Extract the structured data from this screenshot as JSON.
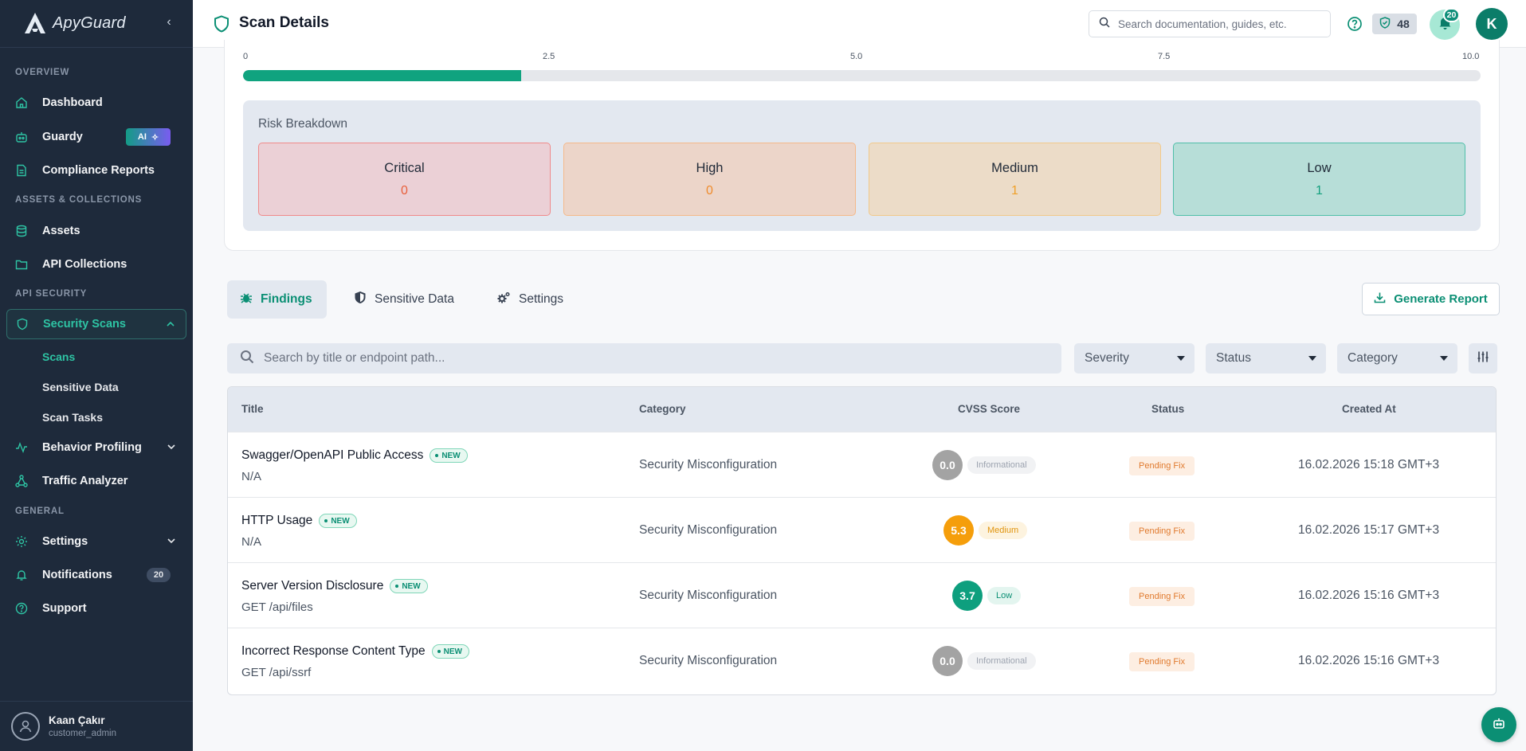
{
  "app": {
    "brand": "ApyGuard",
    "collapse_label": "‹"
  },
  "header": {
    "title": "Scan Details",
    "search_placeholder": "Search documentation, guides, etc.",
    "score": "48",
    "notification_count": "20",
    "avatar_initial": "K"
  },
  "sidebar": {
    "sections": {
      "overview": "OVERVIEW",
      "assets": "ASSETS & COLLECTIONS",
      "api_security": "API SECURITY",
      "general": "GENERAL"
    },
    "items": {
      "dashboard": "Dashboard",
      "guardy": "Guardy",
      "guardy_badge": "AI",
      "compliance": "Compliance Reports",
      "assets": "Assets",
      "api_collections": "API Collections",
      "security_scans": "Security Scans",
      "behavior_profiling": "Behavior Profiling",
      "traffic_analyzer": "Traffic Analyzer",
      "settings": "Settings",
      "notifications": "Notifications",
      "notifications_count": "20",
      "support": "Support"
    },
    "sub_items": {
      "scans": "Scans",
      "sensitive_data": "Sensitive Data",
      "scan_tasks": "Scan Tasks"
    },
    "user": {
      "name": "Kaan Çakır",
      "role": "customer_admin"
    }
  },
  "score_scale": {
    "ticks": [
      "0",
      "2.5",
      "5.0",
      "7.5",
      "10.0"
    ],
    "value": 2.25,
    "max": 10
  },
  "risk": {
    "title": "Risk Breakdown",
    "boxes": [
      {
        "label": "Critical",
        "value": "0",
        "bg": "#ebd0d6",
        "border": "#f08a8a",
        "color": "#e8603c"
      },
      {
        "label": "High",
        "value": "0",
        "bg": "#ecd5c9",
        "border": "#f5b98a",
        "color": "#ef8c2e"
      },
      {
        "label": "Medium",
        "value": "1",
        "bg": "#ecdcc8",
        "border": "#f2c98a",
        "color": "#f0a028"
      },
      {
        "label": "Low",
        "value": "1",
        "bg": "#b7ded8",
        "border": "#4fbfa9",
        "color": "#14a07e"
      }
    ]
  },
  "tabs": {
    "findings": "Findings",
    "sensitive_data": "Sensitive Data",
    "settings": "Settings"
  },
  "generate_report": "Generate Report",
  "filters": {
    "search_placeholder": "Search by title or endpoint path...",
    "severity": "Severity",
    "status": "Status",
    "category": "Category"
  },
  "table": {
    "headers": {
      "title": "Title",
      "category": "Category",
      "cvss": "CVSS Score",
      "status": "Status",
      "created": "Created At"
    },
    "new_label": "NEW",
    "rows": [
      {
        "title": "Swagger/OpenAPI Public Access",
        "sub": "N/A",
        "category": "Security Misconfiguration",
        "score": "0.0",
        "severity": "Informational",
        "circle": "#a3a3a3",
        "tag_bg": "#f1f2f4",
        "tag_color": "#9ca3af",
        "status": "Pending Fix",
        "date": "16.02.2026 15:18 GMT+3"
      },
      {
        "title": "HTTP Usage",
        "sub": "N/A",
        "category": "Security Misconfiguration",
        "score": "5.3",
        "severity": "Medium",
        "circle": "#f59e0b",
        "tag_bg": "#fdf3df",
        "tag_color": "#e0940e",
        "status": "Pending Fix",
        "date": "16.02.2026 15:17 GMT+3"
      },
      {
        "title": "Server Version Disclosure",
        "sub": "GET /api/files",
        "category": "Security Misconfiguration",
        "score": "3.7",
        "severity": "Low",
        "circle": "#0e9f7e",
        "tag_bg": "#e3f5ef",
        "tag_color": "#0b8f74",
        "status": "Pending Fix",
        "date": "16.02.2026 15:16 GMT+3"
      },
      {
        "title": "Incorrect Response Content Type",
        "sub": "GET /api/ssrf",
        "category": "Security Misconfiguration",
        "score": "0.0",
        "severity": "Informational",
        "circle": "#a3a3a3",
        "tag_bg": "#f1f2f4",
        "tag_color": "#9ca3af",
        "status": "Pending Fix",
        "date": "16.02.2026 15:16 GMT+3"
      }
    ]
  },
  "colors": {
    "accent": "#0b8f74",
    "sidebar_bg": "#1e2a3b"
  }
}
